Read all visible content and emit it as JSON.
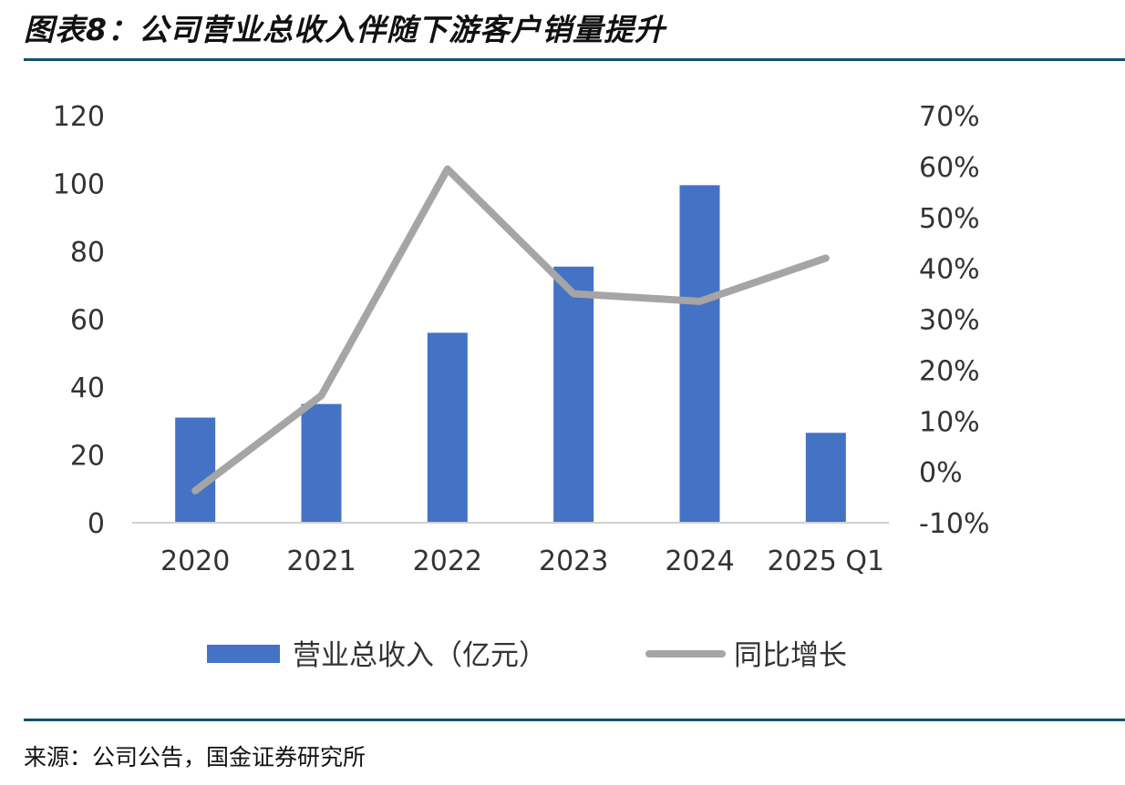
{
  "header": {
    "figure_title": "图表8：公司营业总收入伴随下游客户销量提升"
  },
  "footer": {
    "source": "来源：公司公告，国金证券研究所"
  },
  "colors": {
    "bar": "#4472c4",
    "line": "#a5a5a5",
    "rule": "#12506f"
  },
  "chart_data": {
    "type": "bar",
    "categories": [
      "2020",
      "2021",
      "2022",
      "2023",
      "2024",
      "2025 Q1"
    ],
    "series": [
      {
        "name": "营业总收入（亿元）",
        "type": "bar",
        "axis": "left",
        "values": [
          31,
          35,
          56,
          75.5,
          99.5,
          26.5
        ]
      },
      {
        "name": "同比增长",
        "type": "line",
        "axis": "right",
        "values": [
          -3.7,
          15,
          59.5,
          35,
          33.5,
          42
        ]
      }
    ],
    "y_left": {
      "min": 0,
      "max": 120,
      "ticks": [
        "120",
        "100",
        "80",
        "60",
        "40",
        "20",
        "0"
      ]
    },
    "y_right": {
      "min": -10,
      "max": 70,
      "ticks": [
        "70%",
        "60%",
        "50%",
        "40%",
        "30%",
        "20%",
        "10%",
        "0%",
        "-10%"
      ]
    },
    "grid": false,
    "legend": "bottom"
  }
}
